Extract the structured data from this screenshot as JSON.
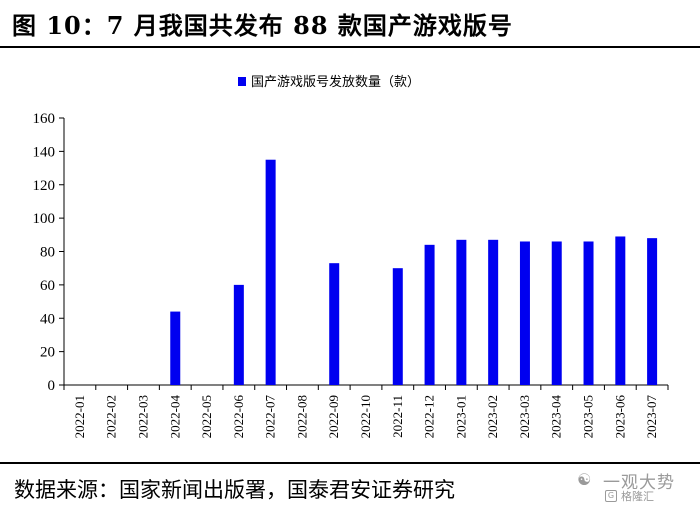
{
  "header": {
    "title": "图 10：7 月我国共发布 88 款国产游戏版号"
  },
  "footer": {
    "source": "数据来源：国家新闻出版署，国泰君安证券研究"
  },
  "watermark": {
    "name": "一观大势",
    "sub": "格隆汇",
    "icon": "wechat-icon"
  },
  "colors": {
    "bar": "#0000f0",
    "axis": "#000000"
  },
  "chart_data": {
    "type": "bar",
    "categories": [
      "2022-01",
      "2022-02",
      "2022-03",
      "2022-04",
      "2022-05",
      "2022-06",
      "2022-07",
      "2022-08",
      "2022-09",
      "2022-10",
      "2022-11",
      "2022-12",
      "2023-01",
      "2023-02",
      "2023-03",
      "2023-04",
      "2023-05",
      "2023-06",
      "2023-07"
    ],
    "series": [
      {
        "name": "国产游戏版号发放数量（款）",
        "values": [
          0,
          0,
          0,
          44,
          0,
          60,
          135,
          0,
          73,
          0,
          70,
          84,
          87,
          87,
          86,
          86,
          86,
          89,
          88
        ]
      }
    ],
    "ylim": [
      0,
      160
    ],
    "yticks": [
      0,
      20,
      40,
      60,
      80,
      100,
      120,
      140,
      160
    ],
    "legend": "top-center",
    "grid": false
  }
}
